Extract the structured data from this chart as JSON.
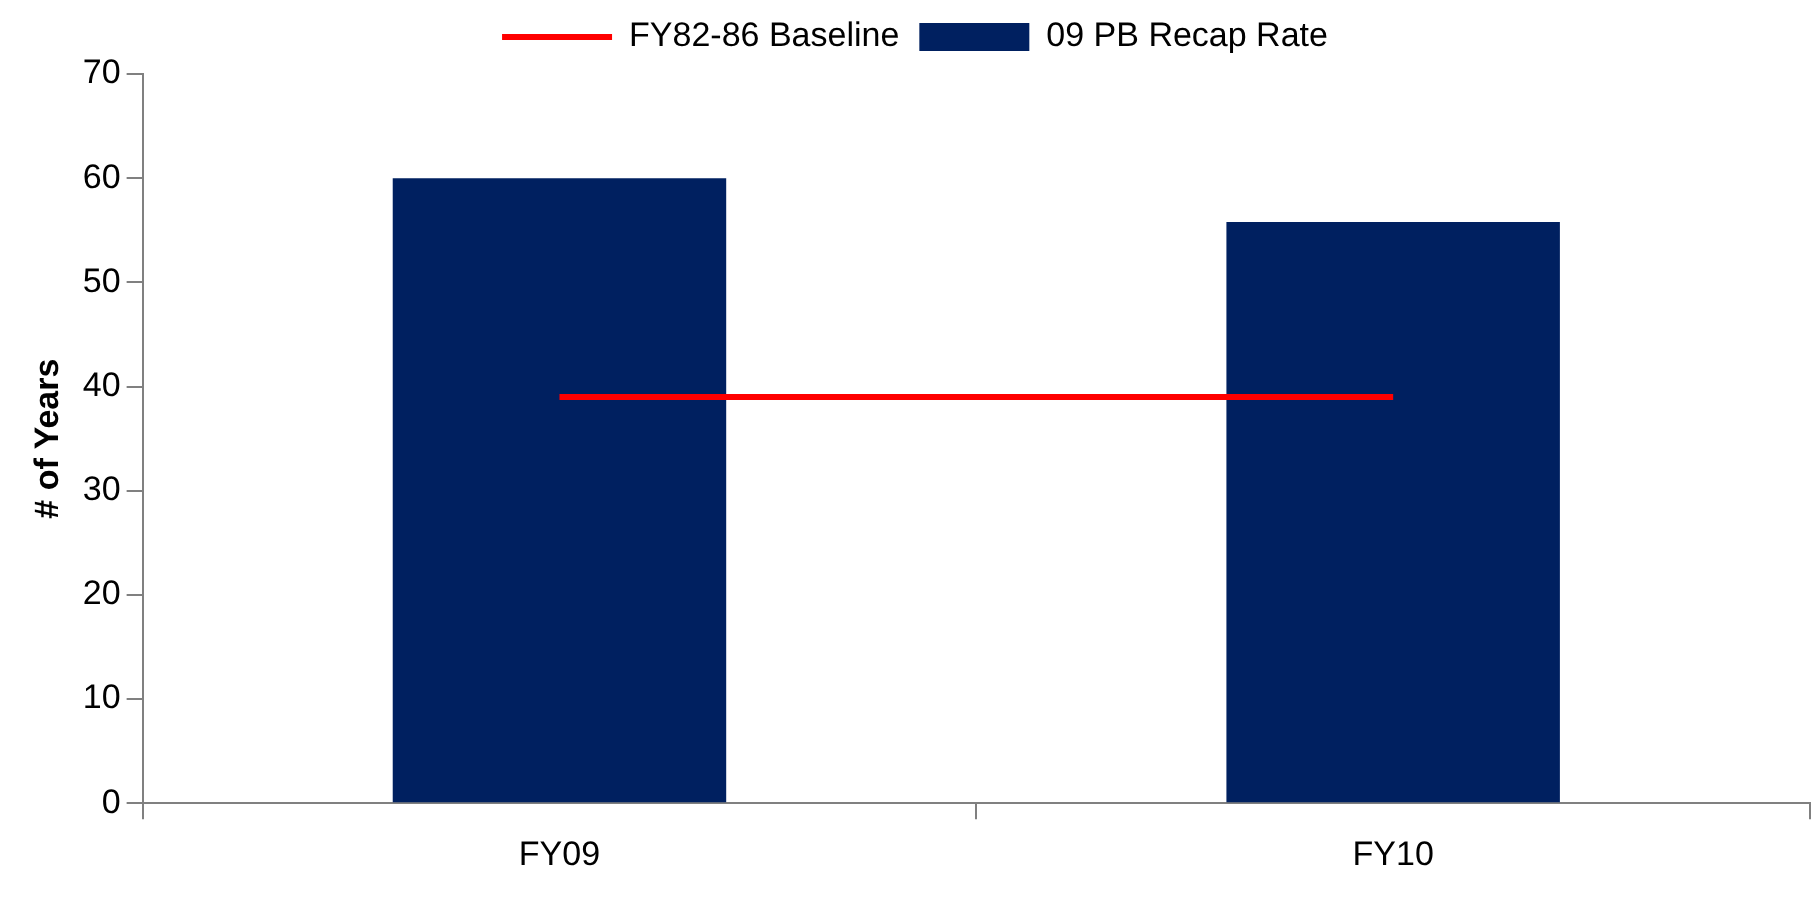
{
  "chart_data": {
    "type": "bar",
    "categories": [
      "FY09",
      "FY10"
    ],
    "ylabel": "# of Years",
    "ylim": [
      0,
      70
    ],
    "yticks": [
      0,
      10,
      20,
      30,
      40,
      50,
      60,
      70
    ],
    "grid": false,
    "legend": "top",
    "marker": "none",
    "series": [
      {
        "name": "09 PB Recap Rate",
        "color": "#002060",
        "values": [
          60,
          55.8
        ]
      },
      {
        "name": "FY82-86 Baseline",
        "type": "line",
        "color": "#ff0000",
        "values": [
          39,
          39
        ]
      }
    ]
  }
}
